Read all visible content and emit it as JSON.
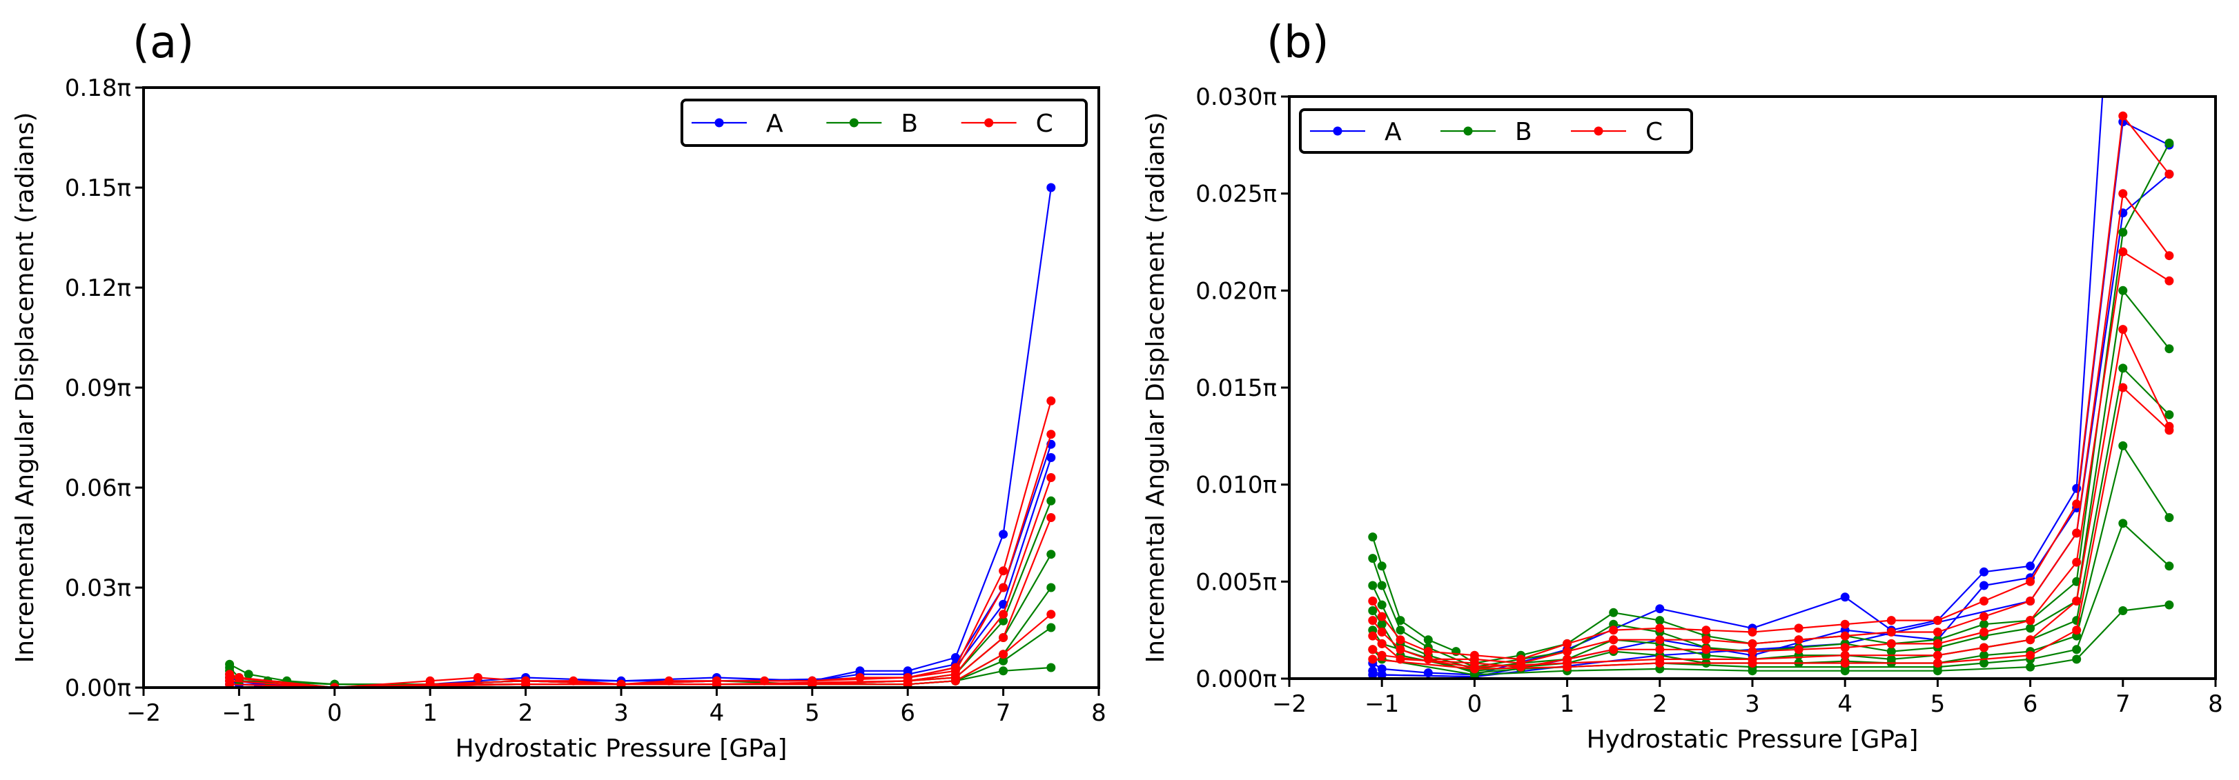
{
  "chart_data": [
    {
      "type": "line",
      "panel": "(a)",
      "xlabel": "Hydrostatic Pressure [GPa]",
      "ylabel": "Incremental Angular Displacement (radians)",
      "xlim": [
        -2,
        8
      ],
      "ylim": [
        0,
        0.18
      ],
      "xticks": [
        -2,
        -1,
        0,
        1,
        2,
        3,
        4,
        5,
        6,
        7,
        8
      ],
      "xtick_labels": [
        "−2",
        "−1",
        "0",
        "1",
        "2",
        "3",
        "4",
        "5",
        "6",
        "7",
        "8"
      ],
      "yticks": [
        0,
        0.03,
        0.06,
        0.09,
        0.12,
        0.15,
        0.18
      ],
      "ytick_labels": [
        "0.00π",
        "0.03π",
        "0.06π",
        "0.09π",
        "0.12π",
        "0.15π",
        "0.18π"
      ],
      "legend_position": "top-right",
      "legend": [
        "A",
        "B",
        "C"
      ],
      "series": [
        {
          "name": "A",
          "color": "#0000ff",
          "x": [
            -1.1,
            -1.0,
            -0.8,
            0.0,
            1.0,
            1.5,
            2.0,
            3.0,
            4.0,
            5.0,
            5.5,
            6.0,
            6.5,
            7.0,
            7.5
          ],
          "values": [
            0.003,
            0.002,
            0.001,
            0.0,
            0.001,
            0.002,
            0.003,
            0.002,
            0.003,
            0.002,
            0.005,
            0.005,
            0.009,
            0.046,
            0.15
          ]
        },
        {
          "name": "A",
          "color": "#0000ff",
          "x": [
            -1.1,
            -1.0,
            0.0,
            1.0,
            2.0,
            3.0,
            4.0,
            5.0,
            5.5,
            6.0,
            6.5,
            7.0,
            7.5
          ],
          "values": [
            0.002,
            0.001,
            0.0,
            0.001,
            0.002,
            0.001,
            0.002,
            0.002,
            0.004,
            0.004,
            0.007,
            0.03,
            0.073
          ]
        },
        {
          "name": "A",
          "color": "#0000ff",
          "x": [
            -1.1,
            0.0,
            2.0,
            4.0,
            6.0,
            6.5,
            7.0,
            7.5
          ],
          "values": [
            0.001,
            0.0,
            0.002,
            0.002,
            0.003,
            0.006,
            0.025,
            0.069
          ]
        },
        {
          "name": "B",
          "color": "#008000",
          "x": [
            -1.1,
            -0.9,
            -0.5,
            0.0,
            1.0,
            2.0,
            3.0,
            4.0,
            5.0,
            6.0,
            6.5,
            7.0,
            7.5
          ],
          "values": [
            0.007,
            0.004,
            0.002,
            0.001,
            0.001,
            0.002,
            0.001,
            0.002,
            0.001,
            0.002,
            0.004,
            0.02,
            0.056
          ]
        },
        {
          "name": "B",
          "color": "#008000",
          "x": [
            -1.1,
            -1.0,
            -0.7,
            0.0,
            1.0,
            2.0,
            3.0,
            4.0,
            5.0,
            6.0,
            6.5,
            7.0,
            7.5
          ],
          "values": [
            0.006,
            0.003,
            0.002,
            0.001,
            0.001,
            0.002,
            0.001,
            0.001,
            0.001,
            0.002,
            0.003,
            0.015,
            0.04
          ]
        },
        {
          "name": "B",
          "color": "#008000",
          "x": [
            -1.1,
            -1.0,
            0.0,
            1.0,
            2.0,
            3.0,
            4.0,
            5.0,
            6.0,
            6.5,
            7.0,
            7.5
          ],
          "values": [
            0.005,
            0.002,
            0.001,
            0.001,
            0.001,
            0.001,
            0.001,
            0.001,
            0.001,
            0.002,
            0.01,
            0.03
          ]
        },
        {
          "name": "B",
          "color": "#008000",
          "x": [
            -1.1,
            -1.0,
            0.0,
            1.0,
            2.0,
            3.0,
            4.0,
            5.0,
            6.0,
            6.5,
            7.0,
            7.5
          ],
          "values": [
            0.004,
            0.002,
            0.001,
            0.001,
            0.001,
            0.001,
            0.001,
            0.001,
            0.001,
            0.002,
            0.008,
            0.018
          ]
        },
        {
          "name": "B",
          "color": "#008000",
          "x": [
            -1.1,
            0.0,
            2.0,
            4.0,
            6.0,
            6.5,
            7.0,
            7.5
          ],
          "values": [
            0.003,
            0.0,
            0.001,
            0.001,
            0.001,
            0.002,
            0.005,
            0.006
          ]
        },
        {
          "name": "C",
          "color": "#ff0000",
          "x": [
            -1.1,
            -1.0,
            0.0,
            1.0,
            1.5,
            2.0,
            2.5,
            3.0,
            3.5,
            4.0,
            4.5,
            5.0,
            5.5,
            6.0,
            6.5,
            7.0,
            7.5
          ],
          "values": [
            0.004,
            0.003,
            0.0,
            0.002,
            0.003,
            0.002,
            0.002,
            0.001,
            0.002,
            0.002,
            0.002,
            0.002,
            0.003,
            0.003,
            0.006,
            0.035,
            0.086
          ]
        },
        {
          "name": "C",
          "color": "#ff0000",
          "x": [
            -1.1,
            0.0,
            1.0,
            2.0,
            3.0,
            4.0,
            5.0,
            6.0,
            6.5,
            7.0,
            7.5
          ],
          "values": [
            0.003,
            0.0,
            0.001,
            0.002,
            0.001,
            0.002,
            0.002,
            0.003,
            0.005,
            0.03,
            0.076
          ]
        },
        {
          "name": "C",
          "color": "#ff0000",
          "x": [
            -1.1,
            0.0,
            1.0,
            2.0,
            3.0,
            4.0,
            5.0,
            6.0,
            6.5,
            7.0,
            7.5
          ],
          "values": [
            0.002,
            0.0,
            0.001,
            0.001,
            0.001,
            0.001,
            0.001,
            0.002,
            0.004,
            0.022,
            0.063
          ]
        },
        {
          "name": "C",
          "color": "#ff0000",
          "x": [
            -1.1,
            0.0,
            2.0,
            4.0,
            6.0,
            6.5,
            7.0,
            7.5
          ],
          "values": [
            0.002,
            0.0,
            0.001,
            0.001,
            0.002,
            0.003,
            0.015,
            0.051
          ]
        },
        {
          "name": "C",
          "color": "#ff0000",
          "x": [
            -1.1,
            0.0,
            2.0,
            4.0,
            6.0,
            6.5,
            7.0,
            7.5
          ],
          "values": [
            0.001,
            0.0,
            0.001,
            0.001,
            0.001,
            0.002,
            0.01,
            0.022
          ]
        }
      ]
    },
    {
      "type": "line",
      "panel": "(b)",
      "xlabel": "Hydrostatic Pressure [GPa]",
      "ylabel": "Incremental Angular Displacement (radians)",
      "xlim": [
        -2,
        8
      ],
      "ylim": [
        0,
        0.03
      ],
      "xticks": [
        -2,
        -1,
        0,
        1,
        2,
        3,
        4,
        5,
        6,
        7,
        8
      ],
      "xtick_labels": [
        "−2",
        "−1",
        "0",
        "1",
        "2",
        "3",
        "4",
        "5",
        "6",
        "7",
        "8"
      ],
      "yticks": [
        0,
        0.005,
        0.01,
        0.015,
        0.02,
        0.025,
        0.03
      ],
      "ytick_labels": [
        "0.000π",
        "0.005π",
        "0.010π",
        "0.015π",
        "0.020π",
        "0.025π",
        "0.030π"
      ],
      "legend_position": "top-left",
      "legend": [
        "A",
        "B",
        "C"
      ],
      "series": [
        {
          "name": "A",
          "color": "#0000ff",
          "x": [
            -1.1,
            -1.0,
            -0.5,
            0.0,
            1.0,
            2.0,
            3.0,
            4.0,
            4.5,
            5.0,
            5.5,
            6.0,
            6.5,
            7.0
          ],
          "values": [
            0.0008,
            0.0005,
            0.0003,
            0.0002,
            0.0015,
            0.0036,
            0.0026,
            0.0042,
            0.0025,
            0.003,
            0.0055,
            0.0058,
            0.0098,
            0.046
          ]
        },
        {
          "name": "A",
          "color": "#0000ff",
          "x": [
            -1.1,
            -1.0,
            0.0,
            1.0,
            2.0,
            3.0,
            4.0,
            5.0,
            5.5,
            6.0,
            6.5,
            7.0,
            7.5
          ],
          "values": [
            0.0004,
            0.0002,
            0.0001,
            0.001,
            0.002,
            0.0012,
            0.0025,
            0.002,
            0.0048,
            0.0052,
            0.0088,
            0.0287,
            0.0275
          ]
        },
        {
          "name": "A",
          "color": "#0000ff",
          "x": [
            -1.1,
            0.0,
            2.0,
            4.0,
            6.0,
            6.5,
            7.0,
            7.5
          ],
          "values": [
            0.0002,
            0.0001,
            0.0012,
            0.0018,
            0.004,
            0.0075,
            0.024,
            0.026
          ]
        },
        {
          "name": "B",
          "color": "#008000",
          "x": [
            -1.1,
            -1.0,
            -0.8,
            -0.5,
            -0.2,
            0.0,
            0.5,
            1.0,
            1.5,
            2.0,
            2.5,
            3.0,
            3.5,
            4.0,
            4.5,
            5.0,
            5.5,
            6.0,
            6.5,
            7.0,
            7.5
          ],
          "values": [
            0.0073,
            0.0058,
            0.003,
            0.002,
            0.0014,
            0.0008,
            0.0012,
            0.0018,
            0.0034,
            0.003,
            0.0022,
            0.0018,
            0.002,
            0.0022,
            0.0018,
            0.002,
            0.0028,
            0.003,
            0.005,
            0.023,
            0.0276
          ]
        },
        {
          "name": "B",
          "color": "#008000",
          "x": [
            -1.1,
            -1.0,
            -0.8,
            -0.5,
            0.0,
            0.5,
            1.0,
            1.5,
            2.0,
            2.5,
            3.0,
            3.5,
            4.0,
            4.5,
            5.0,
            5.5,
            6.0,
            6.5,
            7.0,
            7.5
          ],
          "values": [
            0.0062,
            0.0048,
            0.0025,
            0.0016,
            0.0006,
            0.001,
            0.0014,
            0.0028,
            0.0024,
            0.0016,
            0.0014,
            0.0016,
            0.0018,
            0.0014,
            0.0016,
            0.0022,
            0.0026,
            0.004,
            0.02,
            0.017
          ]
        },
        {
          "name": "B",
          "color": "#008000",
          "x": [
            -1.1,
            -1.0,
            -0.8,
            -0.5,
            0.0,
            0.5,
            1.0,
            1.5,
            2.0,
            2.5,
            3.0,
            3.5,
            4.0,
            4.5,
            5.0,
            5.5,
            6.0,
            6.5,
            7.0,
            7.5
          ],
          "values": [
            0.0048,
            0.0038,
            0.0018,
            0.0012,
            0.0005,
            0.0008,
            0.001,
            0.002,
            0.0018,
            0.0012,
            0.001,
            0.0012,
            0.0012,
            0.001,
            0.0012,
            0.0016,
            0.002,
            0.003,
            0.016,
            0.0136
          ]
        },
        {
          "name": "B",
          "color": "#008000",
          "x": [
            -1.1,
            -1.0,
            -0.8,
            0.0,
            0.5,
            1.0,
            1.5,
            2.0,
            2.5,
            3.0,
            3.5,
            4.0,
            4.5,
            5.0,
            5.5,
            6.0,
            6.5,
            7.0,
            7.5
          ],
          "values": [
            0.0035,
            0.0028,
            0.0012,
            0.0004,
            0.0006,
            0.0008,
            0.0014,
            0.0012,
            0.0008,
            0.0008,
            0.0008,
            0.0009,
            0.0008,
            0.0008,
            0.0012,
            0.0014,
            0.0022,
            0.012,
            0.0083
          ]
        },
        {
          "name": "B",
          "color": "#008000",
          "x": [
            -1.1,
            -1.0,
            0.0,
            0.5,
            1.0,
            2.0,
            3.0,
            4.0,
            5.0,
            5.5,
            6.0,
            6.5,
            7.0,
            7.5
          ],
          "values": [
            0.0025,
            0.0018,
            0.0003,
            0.0005,
            0.0006,
            0.0008,
            0.0006,
            0.0006,
            0.0006,
            0.0008,
            0.001,
            0.0015,
            0.008,
            0.0058
          ]
        },
        {
          "name": "B",
          "color": "#008000",
          "x": [
            -1.1,
            -1.0,
            0.0,
            1.0,
            2.0,
            3.0,
            4.0,
            5.0,
            6.0,
            6.5,
            7.0,
            7.5
          ],
          "values": [
            0.0015,
            0.001,
            0.0002,
            0.0004,
            0.0005,
            0.0004,
            0.0004,
            0.0004,
            0.0006,
            0.001,
            0.0035,
            0.0038
          ]
        },
        {
          "name": "C",
          "color": "#ff0000",
          "x": [
            -1.1,
            -1.0,
            -0.8,
            -0.5,
            0.0,
            0.5,
            1.0,
            1.5,
            2.0,
            2.5,
            3.0,
            3.5,
            4.0,
            4.5,
            5.0,
            5.5,
            6.0,
            6.5,
            7.0,
            7.5
          ],
          "values": [
            0.004,
            0.0032,
            0.002,
            0.0014,
            0.0012,
            0.001,
            0.0018,
            0.0025,
            0.0026,
            0.0025,
            0.0024,
            0.0026,
            0.0028,
            0.003,
            0.003,
            0.004,
            0.005,
            0.009,
            0.029,
            0.026
          ]
        },
        {
          "name": "C",
          "color": "#ff0000",
          "x": [
            -1.1,
            -1.0,
            -0.8,
            -0.5,
            0.0,
            0.5,
            1.0,
            1.5,
            2.0,
            2.5,
            3.0,
            3.5,
            4.0,
            4.5,
            5.0,
            5.5,
            6.0,
            6.5,
            7.0,
            7.5
          ],
          "values": [
            0.003,
            0.0024,
            0.0015,
            0.001,
            0.001,
            0.0008,
            0.0014,
            0.002,
            0.002,
            0.002,
            0.0018,
            0.002,
            0.0022,
            0.0024,
            0.0024,
            0.0032,
            0.004,
            0.0075,
            0.025,
            0.0218
          ]
        },
        {
          "name": "C",
          "color": "#ff0000",
          "x": [
            -1.1,
            -1.0,
            -0.8,
            0.0,
            0.5,
            1.0,
            1.5,
            2.0,
            2.5,
            3.0,
            3.5,
            4.0,
            4.5,
            5.0,
            5.5,
            6.0,
            6.5,
            7.0,
            7.5
          ],
          "values": [
            0.0022,
            0.0018,
            0.001,
            0.0008,
            0.0006,
            0.001,
            0.0015,
            0.0015,
            0.0015,
            0.0014,
            0.0015,
            0.0016,
            0.0018,
            0.0018,
            0.0024,
            0.003,
            0.006,
            0.022,
            0.0205
          ]
        },
        {
          "name": "C",
          "color": "#ff0000",
          "x": [
            -1.1,
            -1.0,
            0.0,
            1.0,
            2.0,
            3.0,
            4.0,
            5.0,
            5.5,
            6.0,
            6.5,
            7.0,
            7.5
          ],
          "values": [
            0.0015,
            0.0012,
            0.0006,
            0.0008,
            0.001,
            0.001,
            0.0012,
            0.0012,
            0.0016,
            0.002,
            0.004,
            0.018,
            0.013
          ]
        },
        {
          "name": "C",
          "color": "#ff0000",
          "x": [
            -1.1,
            0.0,
            1.0,
            2.0,
            3.0,
            4.0,
            5.0,
            6.0,
            6.5,
            7.0,
            7.5
          ],
          "values": [
            0.001,
            0.0005,
            0.0006,
            0.0008,
            0.0008,
            0.0008,
            0.0008,
            0.0012,
            0.0025,
            0.015,
            0.0128
          ]
        }
      ]
    }
  ]
}
